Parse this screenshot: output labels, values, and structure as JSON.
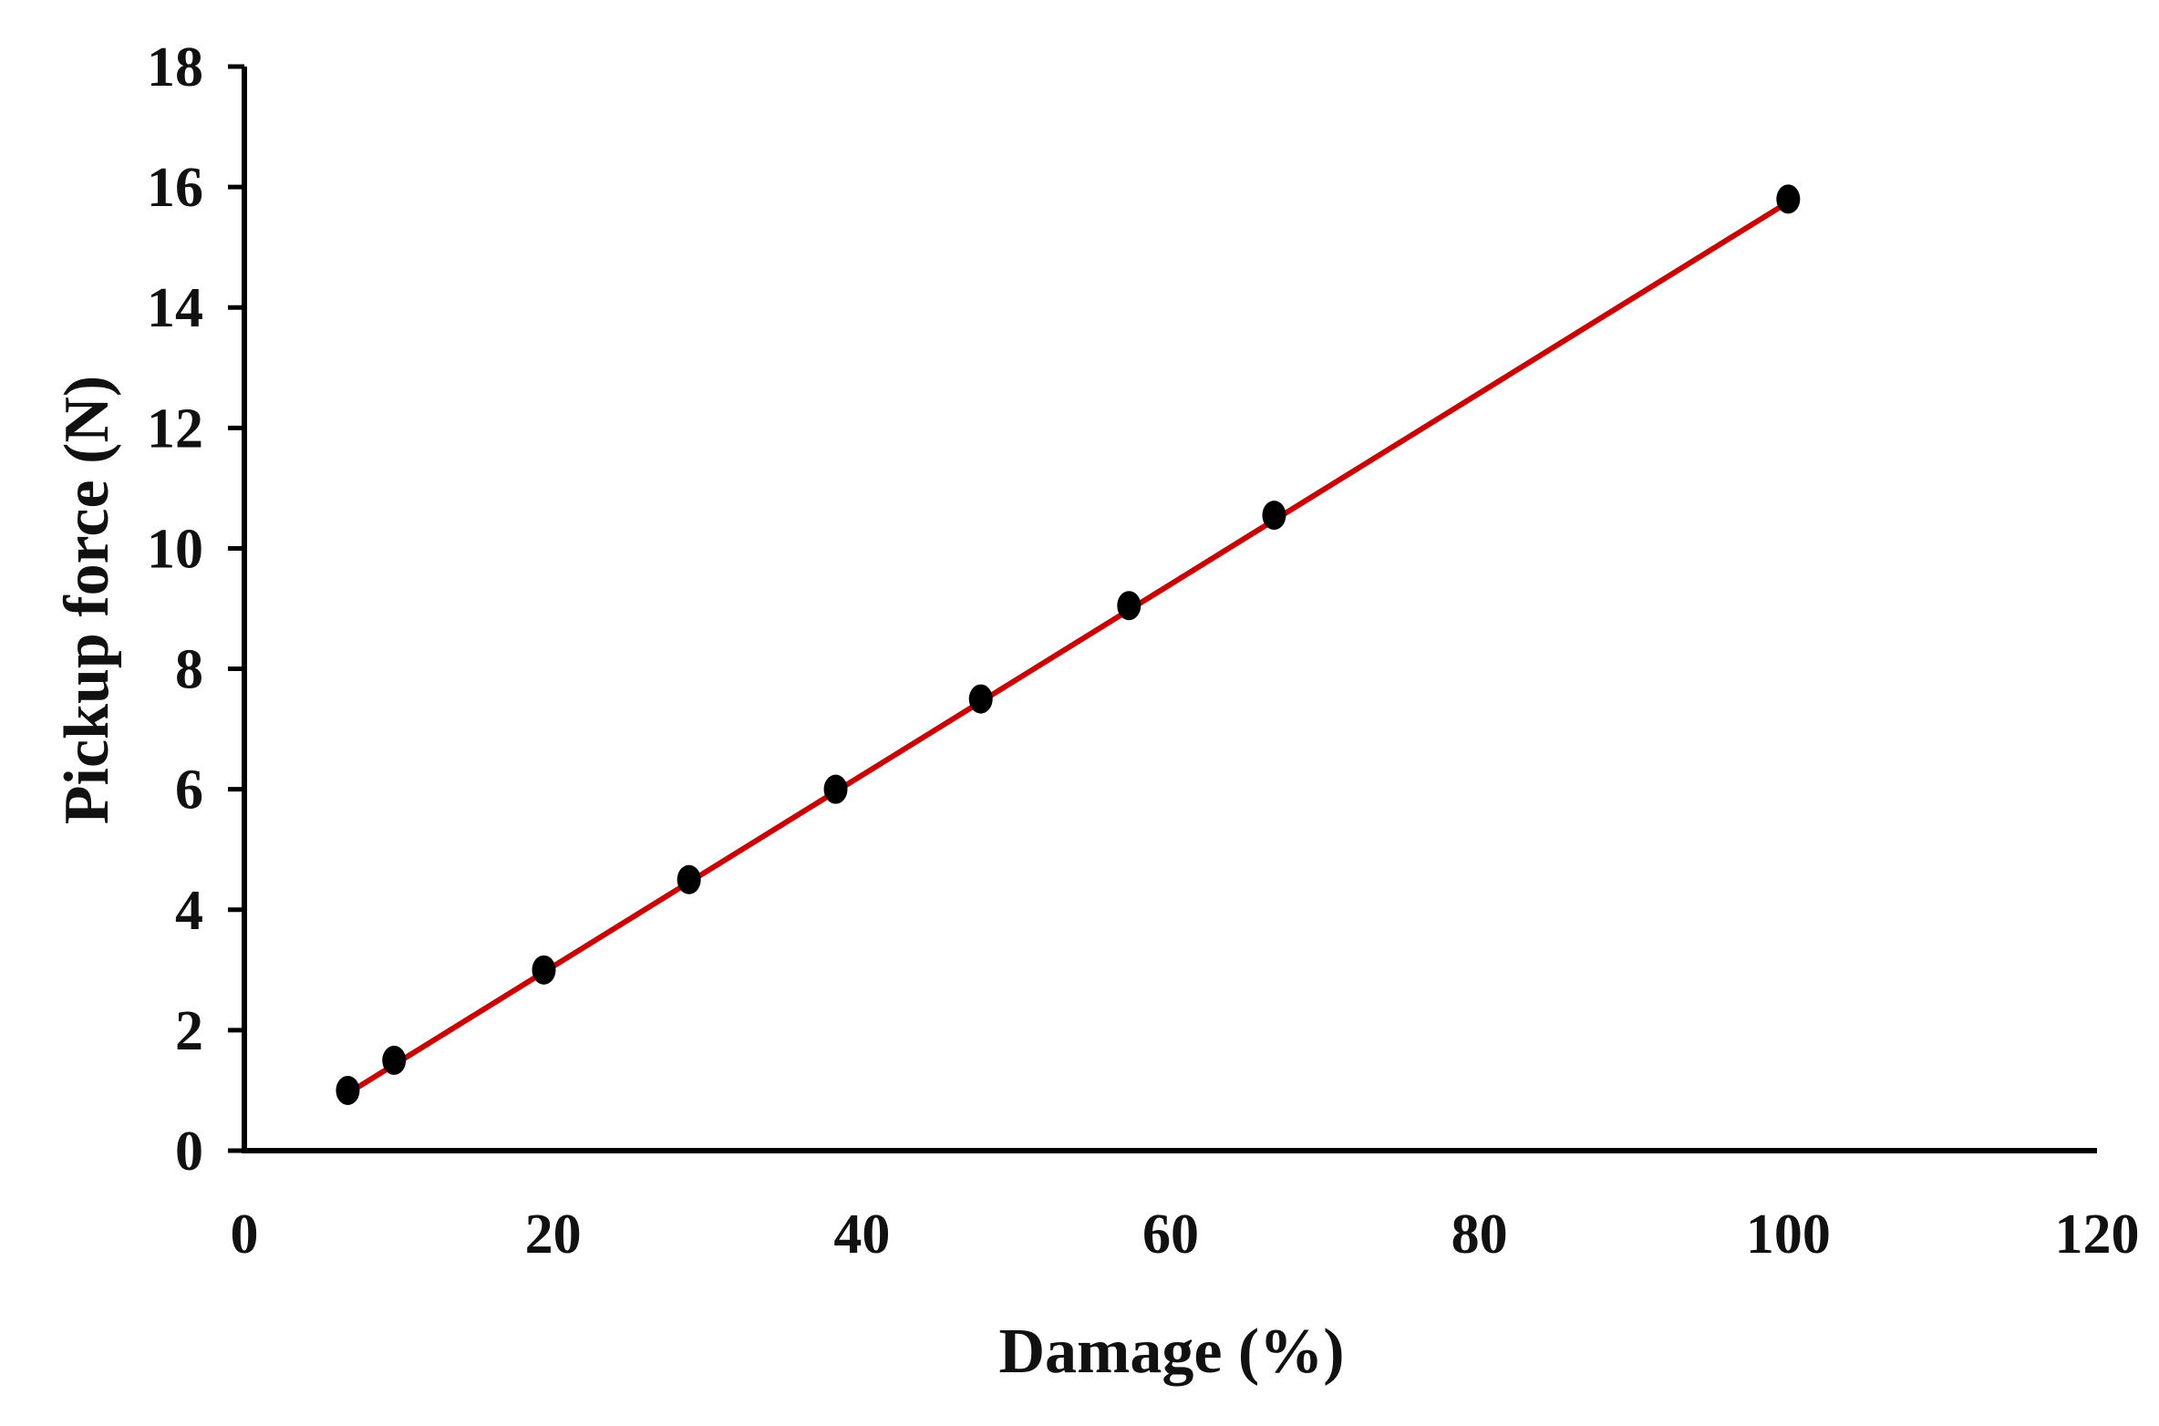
{
  "chart_data": {
    "type": "scatter",
    "title": "",
    "xlabel": "Damage (%)",
    "ylabel": "Pickup force (N)",
    "xlim": [
      0,
      120
    ],
    "ylim": [
      0,
      18
    ],
    "x_ticks": [
      "0",
      "20",
      "40",
      "60",
      "80",
      "100",
      "120"
    ],
    "y_ticks": [
      "0",
      "2",
      "4",
      "6",
      "8",
      "10",
      "12",
      "14",
      "16",
      "18"
    ],
    "grid": false,
    "legend": "none",
    "series": [
      {
        "x": [
          6.7,
          9.7,
          19.4,
          28.8,
          38.3,
          47.7,
          57.3,
          66.7,
          100
        ],
        "y": [
          1.0,
          1.5,
          3.0,
          4.5,
          6.0,
          7.5,
          9.05,
          10.55,
          15.8
        ],
        "marker_color": "#000000"
      }
    ],
    "trendline": {
      "type": "linear",
      "x": [
        6.7,
        100
      ],
      "y": [
        0.95,
        15.75
      ],
      "color": "#cc0000"
    },
    "axis_color": "#000000"
  }
}
